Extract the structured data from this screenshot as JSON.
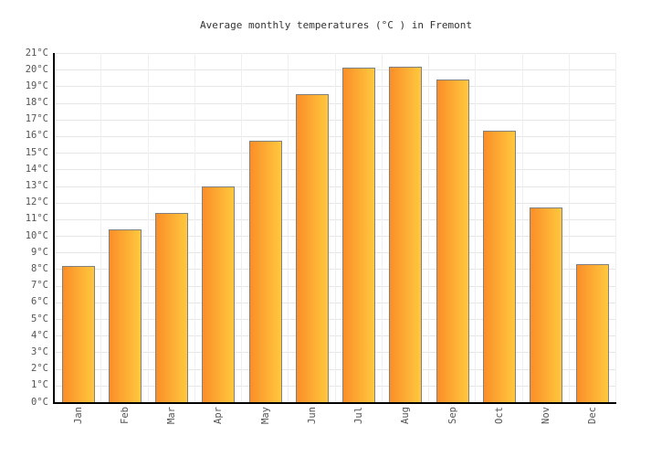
{
  "page": {
    "background": "#FFFFFF"
  },
  "chart_data": {
    "type": "bar",
    "title": "Average monthly temperatures (°C ) in Fremont",
    "categories": [
      "Jan",
      "Feb",
      "Mar",
      "Apr",
      "May",
      "Jun",
      "Jul",
      "Aug",
      "Sep",
      "Oct",
      "Nov",
      "Dec"
    ],
    "values": [
      8.2,
      10.4,
      11.4,
      13.0,
      15.7,
      18.5,
      20.1,
      20.2,
      19.4,
      16.3,
      11.7,
      8.3
    ],
    "unit": "°C",
    "xlabel": "",
    "ylabel": "",
    "ylim": [
      0,
      21
    ],
    "y_tick_step": 1,
    "y_tick_labels": [
      "0°C",
      "1°C",
      "2°C",
      "3°C",
      "4°C",
      "5°C",
      "6°C",
      "7°C",
      "8°C",
      "9°C",
      "10°C",
      "11°C",
      "12°C",
      "13°C",
      "14°C",
      "15°C",
      "16°C",
      "17°C",
      "18°C",
      "19°C",
      "20°C",
      "21°C"
    ],
    "x_labels_rotation_deg": -90,
    "grid": true,
    "legend_position": "none",
    "colors": {
      "bar_gradient_left": "#FB8E28",
      "bar_gradient_right": "#FFC83E",
      "bar_border": "#808080",
      "grid_horizontal": "#E6E6E6",
      "grid_vertical": "#EFEFEF",
      "axis": "#000000",
      "tick_label": "#555555",
      "title": "#333333",
      "background": "#FFFFFF"
    }
  }
}
